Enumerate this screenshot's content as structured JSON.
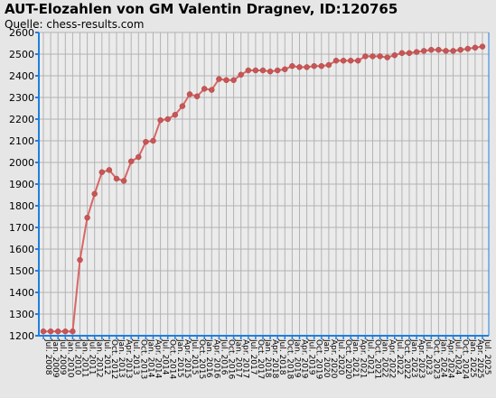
{
  "chart_data": {
    "type": "line",
    "title": "AUT-Elozahlen von GM Valentin Dragnev, ID:120765",
    "subtitle": "Quelle: chess-results.com",
    "xlabel": "",
    "ylabel": "",
    "ylim": [
      1200,
      2600
    ],
    "y_ticks": [
      1200,
      1300,
      1400,
      1500,
      1600,
      1700,
      1800,
      1900,
      2000,
      2100,
      2200,
      2300,
      2400,
      2500,
      2600
    ],
    "x_ticks": [
      "Jul. 2008",
      "Jan. 2009",
      "Jul. 2009",
      "Jan. 2010",
      "Jul. 2010",
      "Jan. 2011",
      "Jul. 2011",
      "Jan. 2012",
      "Jul. 2012",
      "Oct. 2012",
      "Jan. 2013",
      "Apr. 2013",
      "Jul. 2013",
      "Oct. 2013",
      "Jan. 2014",
      "Apr. 2014",
      "Jul. 2014",
      "Oct. 2014",
      "Jan. 2015",
      "Apr. 2015",
      "Jul. 2015",
      "Oct. 2015",
      "Jan. 2016",
      "Apr. 2016",
      "Jul. 2016",
      "Oct. 2016",
      "Jan. 2017",
      "Apr. 2017",
      "Jul. 2017",
      "Oct. 2017",
      "Jan. 2018",
      "Apr. 2018",
      "Jul. 2018",
      "Oct. 2018",
      "Jan. 2019",
      "Apr. 2019",
      "Jul. 2019",
      "Oct. 2019",
      "Jan. 2020",
      "Apr. 2020",
      "Jul. 2020",
      "Oct. 2020",
      "Jan. 2021",
      "Apr. 2021",
      "Jul. 2021",
      "Oct. 2021",
      "Jan. 2022",
      "Apr. 2022",
      "Jul. 2022",
      "Oct. 2022",
      "Jan. 2023",
      "Apr. 2023",
      "Jul. 2023",
      "Oct. 2023",
      "Jan. 2024",
      "Apr. 2024",
      "Jul. 2024",
      "Oct. 2024",
      "Jan. 2025",
      "Apr. 2025",
      "Jul. 2025"
    ],
    "series": [
      {
        "values": [
          1220,
          1220,
          1220,
          1220,
          1220,
          1550,
          1745,
          1855,
          1955,
          1965,
          1925,
          1915,
          2005,
          2025,
          2095,
          2100,
          2195,
          2200,
          2220,
          2260,
          2315,
          2305,
          2340,
          2335,
          2385,
          2380,
          2380,
          2405,
          2425,
          2425,
          2425,
          2420,
          2425,
          2430,
          2445,
          2440,
          2440,
          2445,
          2445,
          2450,
          2470,
          2470,
          2470,
          2470,
          2490,
          2490,
          2490,
          2485,
          2495,
          2505,
          2505,
          2510,
          2515,
          2520,
          2520,
          2515,
          2515,
          2520,
          2525,
          2530,
          2535
        ]
      }
    ],
    "colors": {
      "line": "#d96666",
      "marker": "#c85555",
      "grid": "#b3b3b3",
      "plot_bg": "#ebebeb",
      "axis": "#1f7fe0"
    },
    "grid": true,
    "legend": "none"
  }
}
